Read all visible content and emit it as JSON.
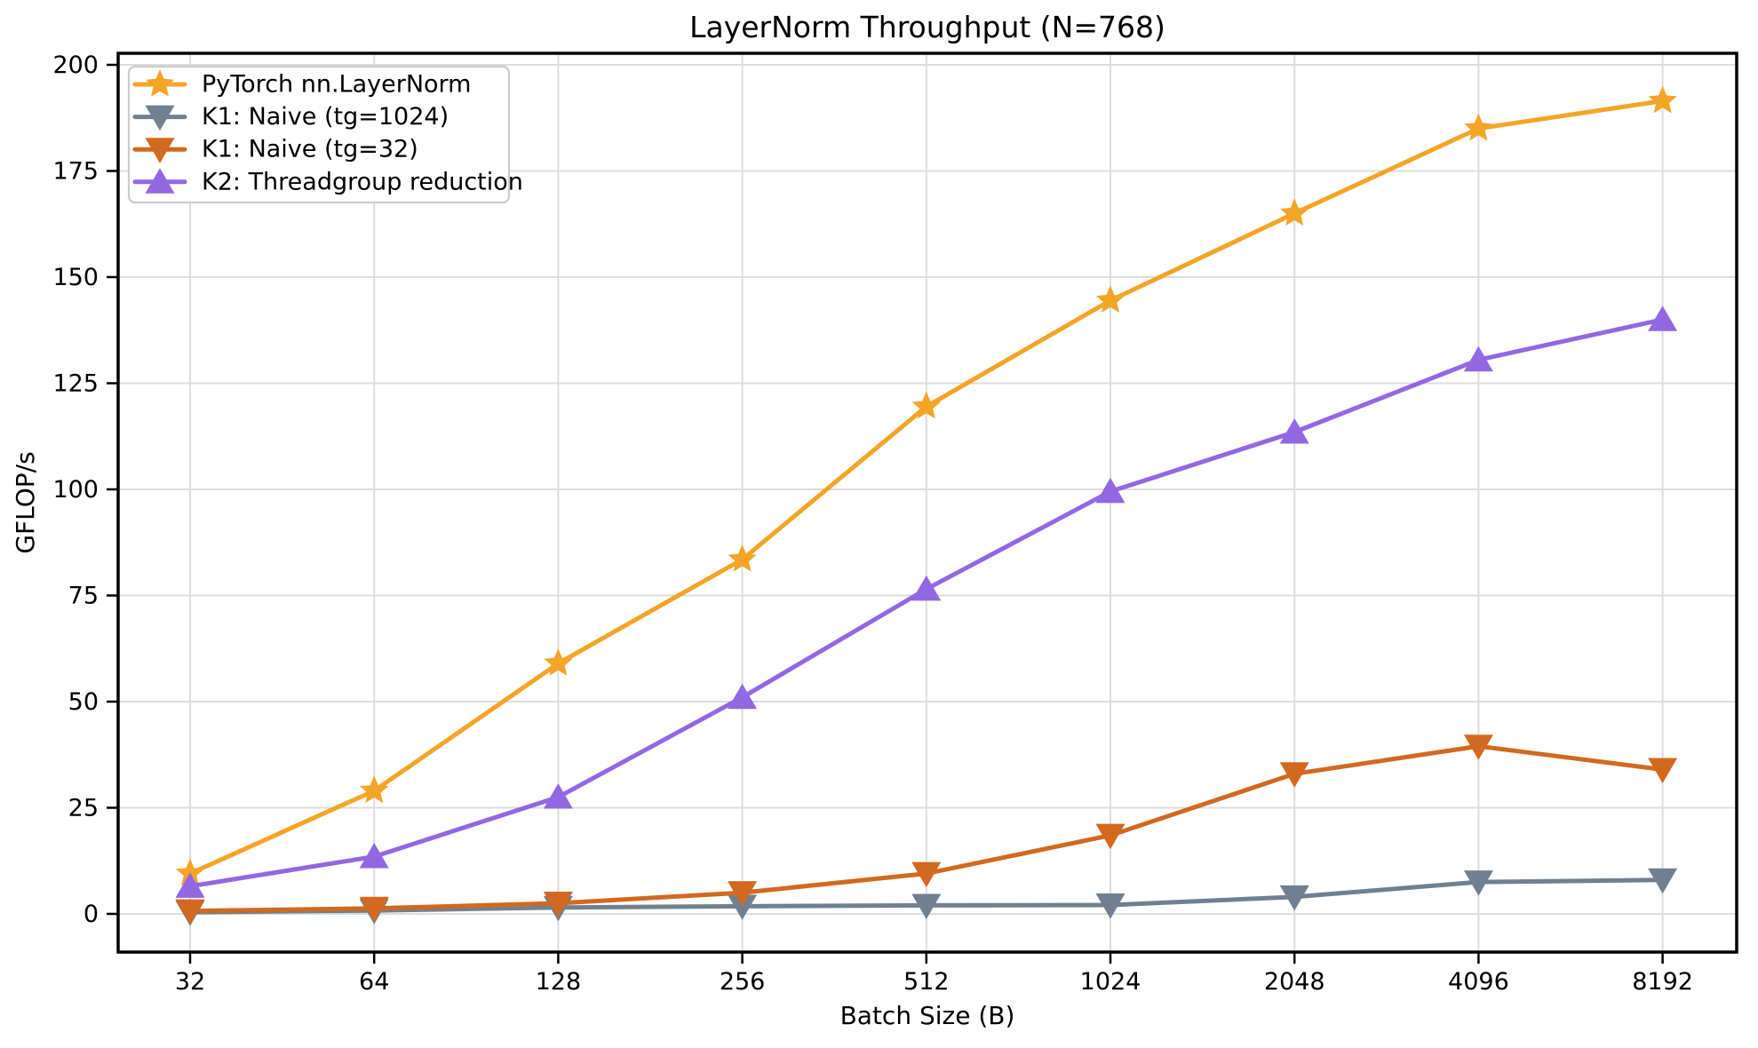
{
  "chart_data": {
    "type": "line",
    "title": "LayerNorm Throughput (N=768)",
    "xlabel": "Batch Size (B)",
    "ylabel": "GFLOP/s",
    "x_scale": "log2",
    "categories": [
      32,
      64,
      128,
      256,
      512,
      1024,
      2048,
      4096,
      8192
    ],
    "x_tick_labels": [
      "32",
      "64",
      "128",
      "256",
      "512",
      "1024",
      "2048",
      "4096",
      "8192"
    ],
    "y_ticks": [
      0,
      25,
      50,
      75,
      100,
      125,
      150,
      175,
      200
    ],
    "y_tick_labels": [
      "0",
      "25",
      "50",
      "75",
      "100",
      "125",
      "150",
      "175",
      "200"
    ],
    "ylim": [
      -8.8,
      202.7
    ],
    "grid": true,
    "legend_position": "upper left",
    "series": [
      {
        "name": "PyTorch nn.LayerNorm",
        "color": "#F4A426",
        "marker": "star",
        "values": [
          9.5,
          29.0,
          59.0,
          83.5,
          119.5,
          144.5,
          165.0,
          185.0,
          191.5
        ]
      },
      {
        "name": "K1: Naive (tg=1024)",
        "color": "#708090",
        "marker": "triangle-down",
        "values": [
          0.4,
          0.8,
          1.5,
          1.8,
          2.0,
          2.1,
          4.0,
          7.5,
          8.0
        ]
      },
      {
        "name": "K1: Naive (tg=32)",
        "color": "#D2691E",
        "marker": "triangle-down",
        "values": [
          0.7,
          1.3,
          2.5,
          5.0,
          9.5,
          18.5,
          33.0,
          39.5,
          34.0
        ]
      },
      {
        "name": "K2: Threadgroup reduction",
        "color": "#9267E4",
        "marker": "triangle-up",
        "values": [
          6.5,
          13.5,
          27.5,
          51.0,
          76.5,
          99.5,
          113.5,
          130.5,
          140.0
        ]
      }
    ],
    "style": {
      "grid_color": "#DCDCDC",
      "spine_color": "#000000",
      "background": "#ffffff",
      "legend_border_color": "#CCCCCC",
      "legend_background": "#FFFFFF"
    }
  }
}
